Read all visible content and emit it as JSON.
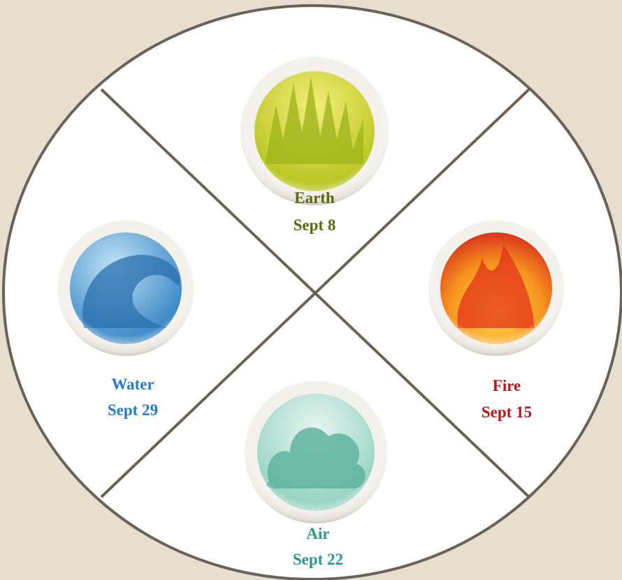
{
  "nodes": [
    {
      "label": "Earth",
      "date": "Sept 8"
    },
    {
      "label": "Fire",
      "date": "Sept 15"
    },
    {
      "label": "Air",
      "date": "Sept 22"
    },
    {
      "label": "Water",
      "date": "Sept 29"
    }
  ]
}
